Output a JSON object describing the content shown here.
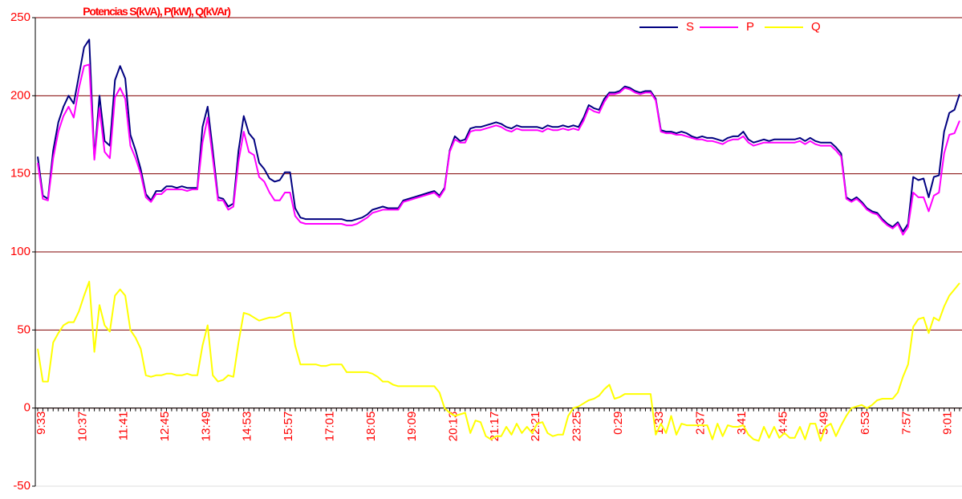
{
  "chart_data": {
    "type": "line",
    "title": "Potencias S(kVA), P(kW), Q(kVAr)",
    "categories": [
      "9:33",
      null,
      null,
      null,
      null,
      null,
      null,
      null,
      "10:37",
      null,
      null,
      null,
      null,
      null,
      null,
      null,
      "11:41",
      null,
      null,
      null,
      null,
      null,
      null,
      null,
      "12:45",
      null,
      null,
      null,
      null,
      null,
      null,
      null,
      "13:49",
      null,
      null,
      null,
      null,
      null,
      null,
      null,
      "14:53",
      null,
      null,
      null,
      null,
      null,
      null,
      null,
      "15:57",
      null,
      null,
      null,
      null,
      null,
      null,
      null,
      "17:01",
      null,
      null,
      null,
      null,
      null,
      null,
      null,
      "18:05",
      null,
      null,
      null,
      null,
      null,
      null,
      null,
      "19:09",
      null,
      null,
      null,
      null,
      null,
      null,
      null,
      "20:13",
      null,
      null,
      null,
      null,
      null,
      null,
      null,
      "21:17",
      null,
      null,
      null,
      null,
      null,
      null,
      null,
      "22:21",
      null,
      null,
      null,
      null,
      null,
      null,
      null,
      "23:25",
      null,
      null,
      null,
      null,
      null,
      null,
      null,
      "0:29",
      null,
      null,
      null,
      null,
      null,
      null,
      null,
      "1:33",
      null,
      null,
      null,
      null,
      null,
      null,
      null,
      "2:37",
      null,
      null,
      null,
      null,
      null,
      null,
      null,
      "3:41",
      null,
      null,
      null,
      null,
      null,
      null,
      null,
      "4:45",
      null,
      null,
      null,
      null,
      null,
      null,
      null,
      "5:49",
      null,
      null,
      null,
      null,
      null,
      null,
      null,
      "6:53",
      null,
      null,
      null,
      null,
      null,
      null,
      null,
      "7:57",
      null,
      null,
      null,
      null,
      null,
      null,
      null,
      "9:01",
      null,
      null,
      null
    ],
    "series": [
      {
        "name": "S",
        "color": "#000080",
        "values": [
          161,
          136,
          134,
          165,
          183,
          193,
          200,
          195,
          213,
          231,
          236,
          160,
          200,
          171,
          168,
          210,
          219,
          211,
          175,
          165,
          153,
          137,
          133,
          139,
          139,
          142,
          142,
          141,
          142,
          141,
          141,
          141,
          180,
          193,
          165,
          135,
          134,
          129,
          131,
          165,
          187,
          176,
          172,
          157,
          153,
          147,
          145,
          146,
          151,
          151,
          128,
          122,
          121,
          121,
          121,
          121,
          121,
          121,
          121,
          121,
          120,
          120,
          121,
          122,
          124,
          127,
          128,
          129,
          128,
          128,
          128,
          133,
          134,
          135,
          136,
          137,
          138,
          139,
          136,
          141,
          165,
          174,
          171,
          172,
          179,
          180,
          180,
          181,
          182,
          183,
          182,
          180,
          179,
          181,
          180,
          180,
          180,
          180,
          179,
          181,
          180,
          180,
          181,
          180,
          181,
          180,
          186,
          194,
          192,
          191,
          198,
          202,
          202,
          203,
          206,
          205,
          203,
          202,
          203,
          203,
          198,
          178,
          177,
          177,
          176,
          177,
          176,
          174,
          173,
          174,
          173,
          173,
          172,
          171,
          173,
          174,
          174,
          177,
          172,
          170,
          171,
          172,
          171,
          172,
          172,
          172,
          172,
          172,
          173,
          171,
          173,
          171,
          170,
          170,
          170,
          167,
          163,
          135,
          133,
          135,
          132,
          128,
          126,
          125,
          121,
          118,
          116,
          119,
          113,
          118,
          148,
          146,
          147,
          135,
          148,
          149,
          177,
          189,
          191,
          201
        ]
      },
      {
        "name": "P",
        "color": "#ff00ff",
        "values": [
          157,
          134,
          133,
          160,
          177,
          187,
          193,
          186,
          205,
          219,
          220,
          159,
          192,
          164,
          160,
          199,
          205,
          198,
          168,
          160,
          150,
          135,
          132,
          137,
          137,
          140,
          140,
          140,
          140,
          139,
          140,
          140,
          170,
          186,
          160,
          133,
          133,
          127,
          129,
          158,
          177,
          164,
          162,
          148,
          145,
          138,
          133,
          133,
          138,
          138,
          123,
          119,
          118,
          118,
          118,
          118,
          118,
          118,
          118,
          118,
          117,
          117,
          118,
          120,
          122,
          125,
          126,
          127,
          127,
          127,
          127,
          132,
          133,
          134,
          135,
          136,
          137,
          138,
          135,
          140,
          164,
          172,
          170,
          170,
          177,
          178,
          178,
          179,
          180,
          181,
          180,
          178,
          177,
          179,
          178,
          178,
          178,
          178,
          177,
          179,
          178,
          178,
          179,
          178,
          179,
          178,
          184,
          192,
          190,
          189,
          196,
          201,
          201,
          202,
          205,
          204,
          202,
          201,
          202,
          202,
          197,
          177,
          176,
          176,
          175,
          175,
          174,
          173,
          172,
          172,
          171,
          171,
          170,
          169,
          171,
          172,
          172,
          174,
          170,
          168,
          169,
          170,
          170,
          170,
          170,
          170,
          170,
          170,
          171,
          169,
          171,
          169,
          168,
          168,
          168,
          165,
          161,
          134,
          132,
          134,
          131,
          127,
          125,
          124,
          120,
          117,
          115,
          118,
          111,
          116,
          138,
          135,
          135,
          126,
          136,
          138,
          163,
          175,
          176,
          184
        ]
      },
      {
        "name": "Q",
        "color": "#ffff00",
        "values": [
          38,
          17,
          17,
          42,
          48,
          53,
          55,
          55,
          62,
          72,
          81,
          36,
          66,
          53,
          49,
          72,
          76,
          72,
          50,
          45,
          38,
          21,
          20,
          21,
          21,
          22,
          22,
          21,
          21,
          22,
          21,
          21,
          40,
          53,
          21,
          17,
          18,
          21,
          20,
          42,
          61,
          60,
          58,
          56,
          57,
          58,
          58,
          59,
          61,
          61,
          40,
          28,
          28,
          28,
          28,
          27,
          27,
          28,
          28,
          28,
          23,
          23,
          23,
          23,
          23,
          22,
          20,
          17,
          17,
          15,
          14,
          14,
          14,
          14,
          14,
          14,
          14,
          14,
          10,
          0,
          -3,
          -5,
          -4,
          -3,
          -16,
          -8,
          -9,
          -18,
          -20,
          -18,
          -18,
          -12,
          -17,
          -10,
          -16,
          -12,
          -16,
          -10,
          -9,
          -16,
          -18,
          -17,
          -17,
          -5,
          0,
          1,
          3,
          5,
          6,
          8,
          12,
          15,
          6,
          7,
          9,
          9,
          9,
          9,
          9,
          9,
          -17,
          -10,
          -16,
          -5,
          -17,
          -10,
          -11,
          -11,
          -11,
          -11,
          -11,
          -20,
          -10,
          -18,
          -11,
          -12,
          -12,
          -11,
          -17,
          -20,
          -21,
          -12,
          -19,
          -12,
          -19,
          -16,
          -19,
          -19,
          -12,
          -20,
          -10,
          -10,
          -21,
          -12,
          -10,
          -18,
          -11,
          -5,
          0,
          1,
          2,
          0,
          2,
          5,
          6,
          6,
          6,
          10,
          20,
          28,
          52,
          57,
          58,
          48,
          58,
          56,
          65,
          72,
          76,
          80
        ]
      }
    ],
    "ylim": [
      -50,
      250
    ],
    "yticks": [
      -50,
      0,
      50,
      100,
      150,
      200,
      250
    ],
    "grid": true,
    "legend": "top-right"
  }
}
